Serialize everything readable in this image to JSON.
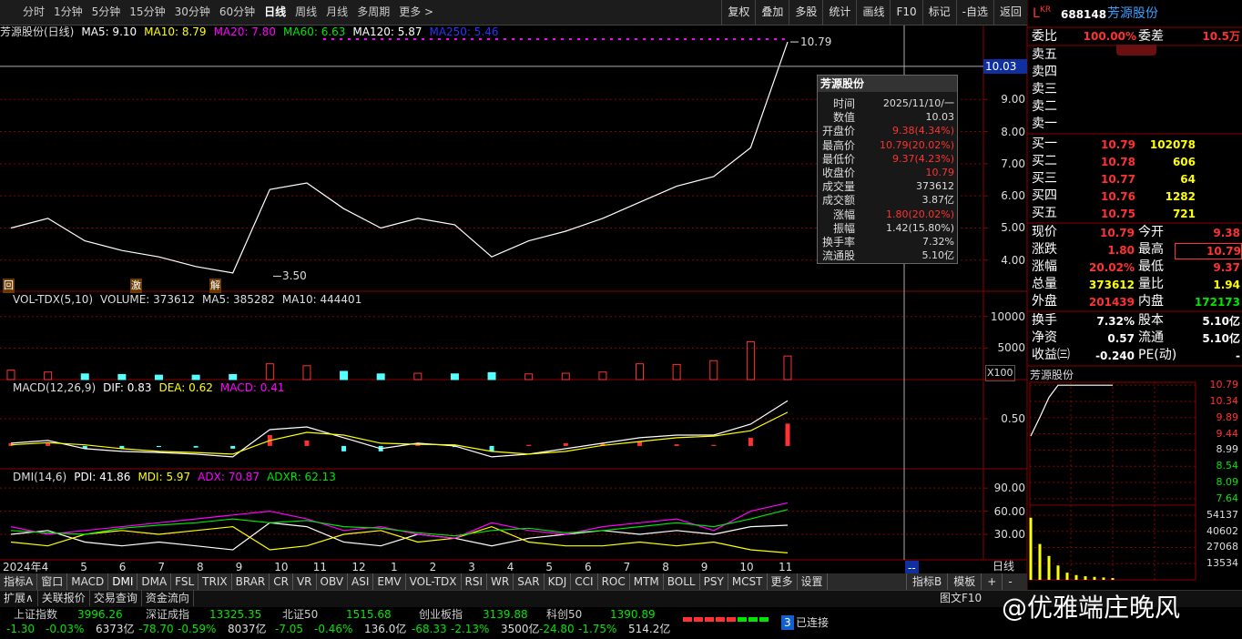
{
  "toolbar": {
    "periods": [
      "分时",
      "1分钟",
      "5分钟",
      "15分钟",
      "30分钟",
      "60分钟",
      "日线",
      "周线",
      "月线",
      "多周期",
      "更多 >"
    ],
    "buttons": [
      "复权",
      "叠加",
      "多股",
      "统计",
      "画线",
      "F10",
      "标记",
      "-自选",
      "返回"
    ]
  },
  "stock": {
    "market": "L",
    "market_sup": "KR",
    "code": "688148",
    "name": "芳源股份"
  },
  "order_book": {
    "weibi_label": "委比",
    "weibi": "100.00%",
    "weicha_label": "委差",
    "weicha": "10.5万",
    "asks": [
      "卖五",
      "卖四",
      "卖三",
      "卖二",
      "卖一"
    ],
    "bids": [
      [
        "买一",
        "10.79",
        "102078"
      ],
      [
        "买二",
        "10.78",
        "606"
      ],
      [
        "买三",
        "10.77",
        "64"
      ],
      [
        "买四",
        "10.76",
        "1282"
      ],
      [
        "买五",
        "10.75",
        "721"
      ]
    ]
  },
  "quote": {
    "rows": [
      [
        "现价",
        "10.79",
        "今开",
        "9.38"
      ],
      [
        "涨跌",
        "1.80",
        "最高",
        "10.79"
      ],
      [
        "涨幅",
        "20.02%",
        "最低",
        "9.37"
      ],
      [
        "总量",
        "373612",
        "量比",
        "1.94"
      ],
      [
        "外盘",
        "201439",
        "内盘",
        "172173"
      ],
      [
        "换手",
        "7.32%",
        "股本",
        "5.10亿"
      ],
      [
        "净资",
        "0.57",
        "流通",
        "5.10亿"
      ],
      [
        "收益㈢",
        "-0.240",
        "PE(动)",
        "-"
      ]
    ]
  },
  "price_pane": {
    "type": "line",
    "title": "芳源股份(日线)",
    "legend": [
      {
        "text": "MA5: 9.10",
        "color": "#ffffff"
      },
      {
        "text": "MA10: 8.79",
        "color": "#ffff00"
      },
      {
        "text": "MA20: 7.80",
        "color": "#ff00ff"
      },
      {
        "text": "MA60: 6.63",
        "color": "#00e600"
      },
      {
        "text": "MA120: 5.87",
        "color": "#ffffff"
      },
      {
        "text": "MA250: 5.46",
        "color": "#3030ff"
      }
    ],
    "ylim": [
      3.03,
      11.33
    ],
    "yticks": [
      {
        "value": 4,
        "label": "4.00"
      },
      {
        "value": 5,
        "label": "5.00"
      },
      {
        "value": 6,
        "label": "6.00"
      },
      {
        "value": 7,
        "label": "7.00"
      },
      {
        "value": 8,
        "label": "8.00"
      },
      {
        "value": 9,
        "label": "9.00"
      }
    ],
    "close": [
      5.0,
      5.3,
      4.6,
      4.3,
      4.1,
      3.8,
      3.6,
      6.2,
      6.4,
      5.6,
      5.0,
      5.3,
      5.1,
      4.1,
      4.6,
      4.9,
      5.3,
      5.8,
      6.3,
      6.6,
      7.5,
      10.79
    ],
    "color": "#ffffff",
    "high": {
      "value": 10.79,
      "label": "10.79"
    },
    "low": {
      "value": 3.5,
      "label": "3.50"
    },
    "crosshair": {
      "value": 10.03,
      "label": "10.03"
    },
    "markers": [
      "回",
      "激",
      "解"
    ]
  },
  "volume_pane": {
    "type": "bar",
    "legend": [
      {
        "text": "VOL-TDX(5,10)",
        "color": "#dddddd"
      },
      {
        "text": "VOLUME: 373612",
        "color": "#dddddd"
      },
      {
        "text": "MA5: 385282",
        "color": "#dddddd"
      },
      {
        "text": "MA10: 444401",
        "color": "#dddddd"
      }
    ],
    "ylim": [
      0,
      14000
    ],
    "yticks": [
      5000,
      10000
    ],
    "unit": "X100",
    "values": [
      1500,
      1200,
      900,
      800,
      700,
      700,
      800,
      2500,
      2200,
      1300,
      900,
      1000,
      900,
      1100,
      900,
      1000,
      1200,
      2500,
      2400,
      3000,
      6000,
      3736
    ]
  },
  "macd_pane": {
    "type": "bar",
    "legend": [
      {
        "text": "MACD(12,26,9)",
        "color": "#dddddd"
      },
      {
        "text": "DIF: 0.83",
        "color": "#ffffff"
      },
      {
        "text": "DEA: 0.62",
        "color": "#ffff00"
      },
      {
        "text": "MACD: 0.41",
        "color": "#ff00ff"
      }
    ],
    "ylim": [
      -0.42,
      1.22
    ],
    "yticks": [
      {
        "value": 0.5,
        "label": "0.50"
      }
    ],
    "dif": [
      0.05,
      0.1,
      -0.05,
      -0.1,
      -0.12,
      -0.15,
      -0.2,
      0.3,
      0.35,
      0.15,
      -0.05,
      0.05,
      0.0,
      -0.2,
      -0.15,
      -0.05,
      0.05,
      0.15,
      0.2,
      0.2,
      0.4,
      0.83
    ],
    "dea": [
      0.02,
      0.06,
      0.02,
      -0.05,
      -0.1,
      -0.12,
      -0.15,
      0.1,
      0.25,
      0.2,
      0.05,
      0.03,
      0.02,
      -0.1,
      -0.15,
      -0.1,
      0.01,
      0.08,
      0.15,
      0.18,
      0.28,
      0.62
    ],
    "macd": [
      0.05,
      0.05,
      -0.05,
      -0.05,
      -0.02,
      -0.03,
      -0.05,
      0.2,
      0.1,
      -0.1,
      -0.1,
      0.02,
      -0.02,
      -0.1,
      0.02,
      0.05,
      0.04,
      0.08,
      0.03,
      0.02,
      0.15,
      0.41
    ]
  },
  "dmi_pane": {
    "type": "line",
    "legend": [
      {
        "text": "DMI(14,6)",
        "color": "#dddddd"
      },
      {
        "text": "PDI: 41.86",
        "color": "#ffffff"
      },
      {
        "text": "MDI: 5.97",
        "color": "#ffff00"
      },
      {
        "text": "ADX: 70.87",
        "color": "#ff00ff"
      },
      {
        "text": "ADXR: 62.13",
        "color": "#00e600"
      }
    ],
    "ylim": [
      -3,
      115
    ],
    "yticks": [
      {
        "value": 30,
        "label": "30.00"
      },
      {
        "value": 60,
        "label": "60.00"
      },
      {
        "value": 90,
        "label": "90.00"
      }
    ],
    "series": [
      {
        "name": "PDI",
        "color": "#ffffff",
        "values": [
          30,
          35,
          20,
          15,
          20,
          15,
          10,
          45,
          40,
          20,
          15,
          30,
          25,
          15,
          25,
          30,
          35,
          30,
          35,
          30,
          40,
          41.86
        ]
      },
      {
        "name": "MDI",
        "color": "#ffff00",
        "values": [
          20,
          15,
          30,
          35,
          30,
          35,
          40,
          10,
          15,
          30,
          35,
          20,
          25,
          40,
          20,
          15,
          15,
          20,
          15,
          20,
          10,
          5.97
        ]
      },
      {
        "name": "ADX",
        "color": "#ff00ff",
        "values": [
          40,
          30,
          35,
          40,
          45,
          50,
          55,
          60,
          50,
          35,
          40,
          30,
          25,
          45,
          35,
          30,
          40,
          45,
          50,
          35,
          60,
          70.87
        ]
      },
      {
        "name": "ADXR",
        "color": "#00e600",
        "values": [
          35,
          32,
          30,
          38,
          42,
          45,
          50,
          45,
          48,
          40,
          38,
          32,
          28,
          35,
          38,
          32,
          35,
          40,
          45,
          40,
          50,
          62.13
        ]
      }
    ]
  },
  "x_axis": {
    "labels": [
      "2024年",
      "4",
      "5",
      "6",
      "7",
      "8",
      "9",
      "10",
      "11",
      "12",
      "1",
      "2",
      "3",
      "4",
      "5",
      "6",
      "7",
      "8",
      "9",
      "10",
      "11"
    ],
    "cursor_label": "--",
    "period_label": "日线"
  },
  "tooltip": {
    "title": "芳源股份",
    "rows": [
      [
        "时间",
        "2025/11/10/一"
      ],
      [
        "数值",
        "10.03"
      ],
      [
        "开盘价",
        "9.38(4.34%)"
      ],
      [
        "最高价",
        "10.79(20.02%)"
      ],
      [
        "最低价",
        "9.37(4.23%)"
      ],
      [
        "收盘价",
        "10.79"
      ],
      [
        "成交量",
        "373612"
      ],
      [
        "成交额",
        "3.87亿"
      ],
      [
        "涨幅",
        "1.80(20.02%)"
      ],
      [
        "振幅",
        "1.42(15.80%)"
      ],
      [
        "换手率",
        "7.32%"
      ],
      [
        "流通股",
        "5.10亿"
      ]
    ]
  },
  "mini_chart": {
    "title": "芳源股份",
    "ylim": [
      7.46,
      10.87
    ],
    "yticks": [
      10.79,
      10.34,
      9.89,
      9.44,
      8.99,
      8.54,
      8.09,
      7.64
    ],
    "price": [
      9.38,
      9.9,
      10.45,
      10.79,
      10.79,
      10.79,
      10.79,
      10.79,
      10.79,
      10.79
    ],
    "vol_ylim": [
      0,
      62500
    ],
    "vol_ticks": [
      54137,
      40602,
      27068,
      13534
    ],
    "volume": [
      52000,
      30000,
      20000,
      12000,
      6000,
      4000,
      3000,
      2500,
      2000,
      1500
    ]
  },
  "tabs": {
    "left": [
      "指标A",
      "窗口",
      "MACD",
      "DMI",
      "DMA",
      "FSL",
      "TRIX",
      "BRAR",
      "CR",
      "VR",
      "OBV",
      "ASI",
      "EMV",
      "VOL-TDX",
      "RSI",
      "WR",
      "SAR",
      "KDJ",
      "CCI",
      "ROC",
      "MTM",
      "BOLL",
      "PSY",
      "MCST",
      "更多",
      "设置"
    ],
    "right": [
      "指标B",
      "模板",
      "+",
      "-"
    ]
  },
  "ext_bar": {
    "items": [
      "扩展∧",
      "关联报价",
      "交易查询",
      "资金流向"
    ],
    "right": "图文F10"
  },
  "tickers": [
    {
      "name": "上证指数",
      "value": "3996.26",
      "change": "-1.30",
      "pct": "-0.03%",
      "amount": "6373亿"
    },
    {
      "name": "深证成指",
      "value": "13325.35",
      "change": "-78.70",
      "pct": "-0.59%",
      "amount": "8037亿"
    },
    {
      "name": "北证50",
      "value": "1515.68",
      "change": "-7.05",
      "pct": "-0.46%",
      "amount": "136.0亿"
    },
    {
      "name": "创业板指",
      "value": "3139.88",
      "change": "-68.33",
      "pct": "-2.13%",
      "amount": "3500亿"
    },
    {
      "name": "科创50",
      "value": "1390.89",
      "change": "-24.80",
      "pct": "-1.75%",
      "amount": "514.2亿"
    }
  ],
  "status": {
    "count": "3",
    "text": "已连接"
  },
  "watermark": "@优雅端庄晚风"
}
